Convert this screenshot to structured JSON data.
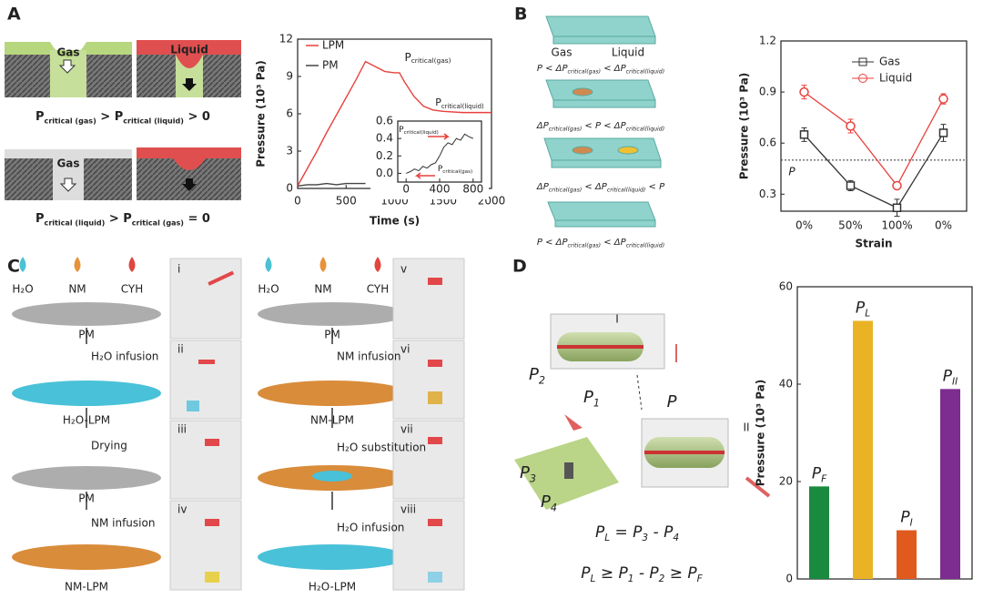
{
  "panels": {
    "A": {
      "label": "A",
      "gas": "Gas",
      "liquid": "Liquid",
      "eq1": [
        "P",
        "critical (gas)",
        " > P",
        "critical (liquid)",
        " > 0"
      ],
      "gas2": "Gas",
      "eq2": [
        "P",
        "critical (liquid)",
        " > P",
        "critical (gas)",
        " = 0"
      ]
    },
    "B": {
      "label": "B",
      "gas": "Gas",
      "liquid": "Liquid",
      "eqs": [
        [
          "P < ΔP",
          "critical(gas)",
          " < ΔP",
          "critical(liquid)"
        ],
        [
          "ΔP",
          "critical(gas)",
          " < P < ΔP",
          "critical(liquid)"
        ],
        [
          "ΔP",
          "critical(gas)",
          " < ΔP",
          "critical(liquid)",
          " < P"
        ],
        [
          "P < ΔP",
          "critical(gas)",
          " < ΔP",
          "critical(liquid)"
        ]
      ]
    },
    "C": {
      "label": "C",
      "left": {
        "drops": [
          "H₂O",
          "NM",
          "CYH"
        ],
        "steps": [
          "PM",
          "H₂O infusion",
          "H₂O-LPM",
          "Drying",
          "PM",
          "NM infusion",
          "NM-LPM"
        ]
      },
      "right": {
        "drops": [
          "H₂O",
          "NM",
          "CYH"
        ],
        "steps": [
          "PM",
          "NM infusion",
          "NM-LPM",
          "H₂O substitution",
          "H₂O infusion",
          "H₂O-LPM"
        ]
      },
      "photos": [
        "i",
        "ii",
        "iii",
        "iv",
        "v",
        "vi",
        "vii",
        "viii"
      ]
    },
    "D": {
      "label": "D",
      "tubes": [
        "I",
        "II"
      ],
      "pressures": [
        [
          "P",
          "2"
        ],
        [
          "P",
          "1"
        ],
        [
          "P"
        ],
        [
          "P",
          "3"
        ],
        [
          "P",
          "4"
        ]
      ],
      "eqs": [
        [
          "P",
          "L",
          " = P",
          "3",
          " - P",
          "4"
        ],
        [
          "P",
          "L",
          " ≥ P",
          "1",
          " - P",
          "2",
          " ≥ P",
          "F"
        ]
      ]
    }
  },
  "chart_data": [
    {
      "type": "line",
      "xlabel": "Time (s)",
      "ylabel": "Pressure (10³ Pa)",
      "xlim": [
        0,
        2000
      ],
      "xticks": [
        0,
        500,
        1000,
        1500,
        2000
      ],
      "ylim": [
        0,
        12
      ],
      "yticks": [
        0,
        3,
        6,
        9,
        12
      ],
      "legend": "upper left",
      "x": [
        0,
        100,
        200,
        300,
        400,
        500,
        600,
        700,
        750,
        800,
        900,
        1000,
        1050,
        1100,
        1200,
        1300,
        1400,
        1500,
        1700,
        1900,
        2000
      ],
      "series": [
        {
          "name": "LPM",
          "color": "#e8413c",
          "values": [
            0.2,
            1.6,
            3.0,
            4.5,
            5.9,
            7.3,
            8.7,
            10.2,
            10.0,
            9.8,
            9.4,
            9.3,
            9.3,
            8.6,
            7.4,
            6.6,
            6.3,
            6.2,
            6.1,
            6.1,
            6.1
          ]
        },
        {
          "name": "PM",
          "color": "#444444",
          "values": [
            0.2,
            0.3,
            0.3,
            0.4,
            0.3,
            0.4,
            0.4,
            0.4,
            null,
            null,
            null,
            null,
            null,
            null,
            null,
            null,
            null,
            null,
            null,
            null,
            null
          ]
        }
      ],
      "annotations": [
        [
          "P",
          "critical(gas)"
        ],
        [
          "P",
          "critical(liquid)"
        ]
      ]
    },
    {
      "type": "line",
      "xlim": [
        -100,
        900
      ],
      "xticks": [
        0,
        400,
        800
      ],
      "ylim": [
        -0.1,
        0.6
      ],
      "yticks": [
        {
          "value": 0,
          "label": "0.0"
        },
        0.2,
        0.4,
        0.6
      ],
      "x": [
        0,
        50,
        100,
        150,
        200,
        250,
        300,
        350,
        400,
        450,
        500,
        550,
        600,
        650,
        700,
        750,
        800
      ],
      "values": [
        0.0,
        0.02,
        0.05,
        0.03,
        0.08,
        0.06,
        0.1,
        0.12,
        0.2,
        0.3,
        0.35,
        0.33,
        0.4,
        0.38,
        0.45,
        0.42,
        0.4
      ],
      "color": "#333333",
      "annotations": [
        [
          "P",
          "critical(liquid)"
        ],
        [
          "P",
          "critical(gas)"
        ]
      ]
    },
    {
      "type": "line",
      "xlabel": "Strain",
      "ylabel": "Pressure (10³ Pa)",
      "categories": [
        "0%",
        "50%",
        "100%",
        "0%"
      ],
      "ylim": [
        0.2,
        1.2
      ],
      "yticks": [
        0.3,
        0.6,
        0.9,
        1.2
      ],
      "legend": "upper center",
      "series": [
        {
          "name": "Gas",
          "color": "#333333",
          "marker": "square",
          "values": [
            0.65,
            0.35,
            0.22,
            0.66
          ],
          "errors": [
            0.04,
            0.03,
            0.05,
            0.05
          ]
        },
        {
          "name": "Liquid",
          "color": "#e8413c",
          "marker": "circle",
          "values": [
            0.9,
            0.7,
            0.35,
            0.86
          ],
          "errors": [
            0.04,
            0.04,
            0.02,
            0.03
          ]
        }
      ],
      "reference_line": 0.5,
      "reference_label": "P"
    },
    {
      "type": "bar",
      "ylabel": "Pressure (10³ Pa)",
      "categories": [
        [
          "P",
          "F"
        ],
        [
          "P",
          "L"
        ],
        [
          "P",
          "I"
        ],
        [
          "P",
          "II"
        ]
      ],
      "values": [
        19,
        53,
        10,
        39
      ],
      "colors": [
        "#1a8a3e",
        "#e9b325",
        "#e05a1e",
        "#7d2c8f"
      ],
      "ylim": [
        0,
        60
      ],
      "yticks": [
        0,
        20,
        40,
        60
      ]
    }
  ]
}
